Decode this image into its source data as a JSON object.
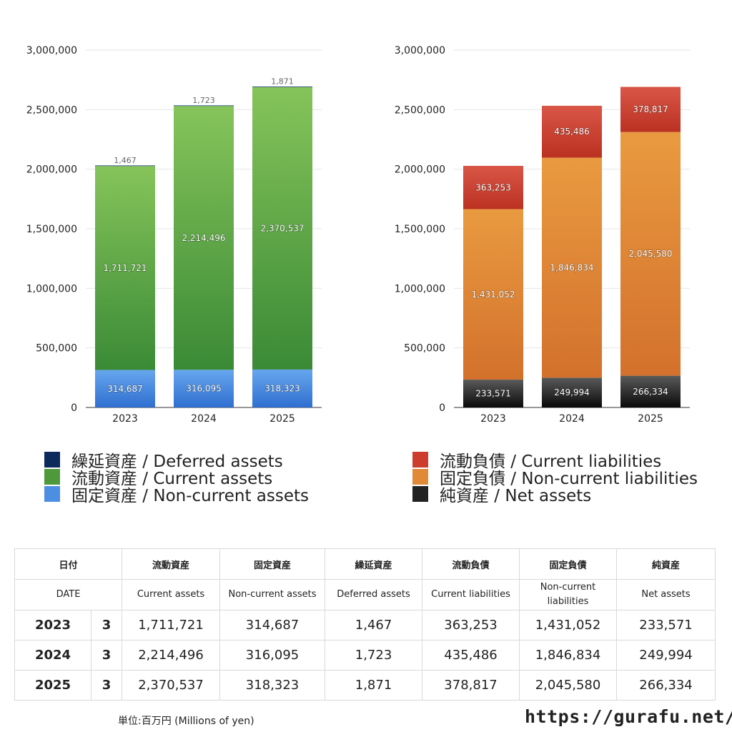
{
  "chart_data": [
    {
      "type": "bar",
      "stacked": true,
      "categories": [
        "2023",
        "2024",
        "2025"
      ],
      "ylim": [
        0,
        3000000
      ],
      "yticks": [
        0,
        500000,
        1000000,
        1500000,
        2000000,
        2500000,
        3000000
      ],
      "ytick_labels": [
        "0",
        "500,000",
        "1,000,000",
        "1,500,000",
        "2,000,000",
        "2,500,000",
        "3,000,000"
      ],
      "grid": true,
      "series": [
        {
          "name": "固定資産 / Non-current assets",
          "key": "noncurrent_assets",
          "values": [
            314687,
            316095,
            318323
          ],
          "labels": [
            "314,687",
            "316,095",
            "318,323"
          ],
          "color_top": "#67a6ee",
          "color_bottom": "#2f6fd0"
        },
        {
          "name": "流動資産 / Current assets",
          "key": "current_assets",
          "values": [
            1711721,
            2214496,
            2370537
          ],
          "labels": [
            "1,711,721",
            "2,214,496",
            "2,370,537"
          ],
          "color_top": "#86c45a",
          "color_bottom": "#3a8a36"
        },
        {
          "name": "繰延資産 / Deferred assets",
          "key": "deferred_assets",
          "values": [
            1467,
            1723,
            1871
          ],
          "labels": [
            "1,467",
            "1,723",
            "1,871"
          ],
          "color_top": "#1a3f7a",
          "color_bottom": "#0d2a5c"
        }
      ]
    },
    {
      "type": "bar",
      "stacked": true,
      "categories": [
        "2023",
        "2024",
        "2025"
      ],
      "ylim": [
        0,
        3000000
      ],
      "yticks": [
        0,
        500000,
        1000000,
        1500000,
        2000000,
        2500000,
        3000000
      ],
      "ytick_labels": [
        "0",
        "500,000",
        "1,000,000",
        "1,500,000",
        "2,000,000",
        "2,500,000",
        "3,000,000"
      ],
      "grid": true,
      "series": [
        {
          "name": "純資産 / Net assets",
          "key": "net_assets",
          "values": [
            233571,
            249994,
            266334
          ],
          "labels": [
            "233,571",
            "249,994",
            "266,334"
          ],
          "color_top": "#5a5a5a",
          "color_bottom": "#0a0a0a"
        },
        {
          "name": "固定負債 / Non-current liabilities",
          "key": "noncurrent_liabilities",
          "values": [
            1431052,
            1846834,
            2045580
          ],
          "labels": [
            "1,431,052",
            "1,846,834",
            "2,045,580"
          ],
          "color_top": "#e99a40",
          "color_bottom": "#d3712c"
        },
        {
          "name": "流動負債 / Current liabilities",
          "key": "current_liabilities",
          "values": [
            363253,
            435486,
            378817
          ],
          "labels": [
            "363,253",
            "435,486",
            "378,817"
          ],
          "color_top": "#d95646",
          "color_bottom": "#bb3122"
        }
      ]
    }
  ],
  "legends": {
    "left": [
      {
        "label": "繰延資産 / Deferred assets",
        "color": "#0d2a5c"
      },
      {
        "label": "流動資産 / Current assets",
        "color": "#4e9a3b"
      },
      {
        "label": "固定資産 / Non-current assets",
        "color": "#4c8fe2"
      }
    ],
    "right": [
      {
        "label": "流動負債 / Current liabilities",
        "color": "#cc3d2e"
      },
      {
        "label": "固定負債 / Non-current liabilities",
        "color": "#e08a37"
      },
      {
        "label": "純資産 / Net assets",
        "color": "#222222"
      }
    ]
  },
  "table": {
    "header_jp": [
      "日付",
      "流動資産",
      "固定資産",
      "繰延資産",
      "流動負債",
      "固定負債",
      "純資産"
    ],
    "header_en": [
      "DATE",
      "Current assets",
      "Non-current assets",
      "Deferred assets",
      "Current liabilities",
      "Non-current liabilities",
      "Net assets"
    ],
    "rows": [
      {
        "year": "2023",
        "month": "3",
        "cells": [
          "1,711,721",
          "314,687",
          "1,467",
          "363,253",
          "1,431,052",
          "233,571"
        ]
      },
      {
        "year": "2024",
        "month": "3",
        "cells": [
          "2,214,496",
          "316,095",
          "1,723",
          "435,486",
          "1,846,834",
          "249,994"
        ]
      },
      {
        "year": "2025",
        "month": "3",
        "cells": [
          "2,370,537",
          "318,323",
          "1,871",
          "378,817",
          "2,045,580",
          "266,334"
        ]
      }
    ]
  },
  "footer": {
    "unit": "単位:百万円 (Millions of yen)",
    "site": "https://gurafu.net/"
  }
}
